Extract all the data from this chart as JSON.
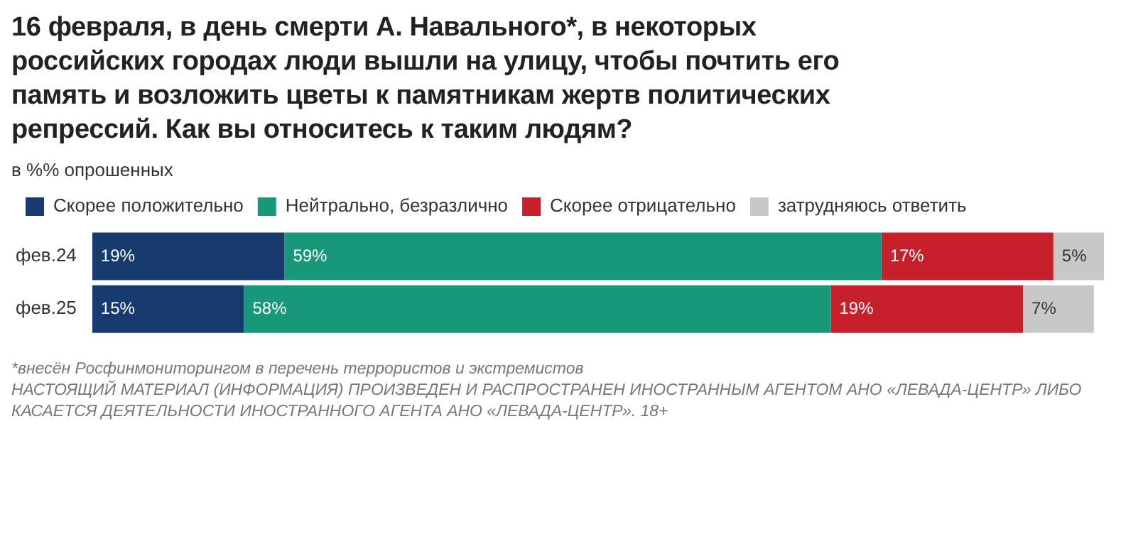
{
  "chart_data": {
    "type": "bar",
    "orientation": "horizontal",
    "stacked": true,
    "title": "16 февраля, в день смерти А. Навального*, в некоторых российских городах люди вышли на улицу, чтобы почтить его память и возложить цветы к памятникам жертв политических репрессий. Как вы относитесь к таким людям?",
    "subtitle": "в %% опрошенных",
    "categories": [
      "фев.24",
      "фев.25"
    ],
    "series": [
      {
        "name": "Скорее положительно",
        "color": "#173b6e",
        "values": [
          19,
          15
        ],
        "value_labels": [
          "19%",
          "15%"
        ]
      },
      {
        "name": "Нейтрально, безразлично",
        "color": "#17987a",
        "values": [
          59,
          58
        ],
        "value_labels": [
          "59%",
          "58%"
        ]
      },
      {
        "name": "Скорее отрицательно",
        "color": "#c8202a",
        "values": [
          17,
          19
        ],
        "value_labels": [
          "17%",
          "19%"
        ]
      },
      {
        "name": "затрудняюсь ответить",
        "color": "#c8c8c8",
        "values": [
          5,
          7
        ],
        "value_labels": [
          "5%",
          "7%"
        ]
      }
    ],
    "legend": "top left",
    "annotations": [
      "*внесён Росфинмониторингом в перечень террористов и экстремистов",
      "НАСТОЯЩИЙ МАТЕРИАЛ (ИНФОРМАЦИЯ) ПРОИЗВЕДЕН И РАСПРОСТРАНЕН ИНОСТРАННЫМ АГЕНТОМ АНО «ЛЕВАДА-ЦЕНТР» ЛИБО КАСАЕТСЯ ДЕЯТЕЛЬНОСТИ ИНОСТРАННОГО АГЕНТА АНО «ЛЕВАДА-ЦЕНТР». 18+"
    ]
  }
}
